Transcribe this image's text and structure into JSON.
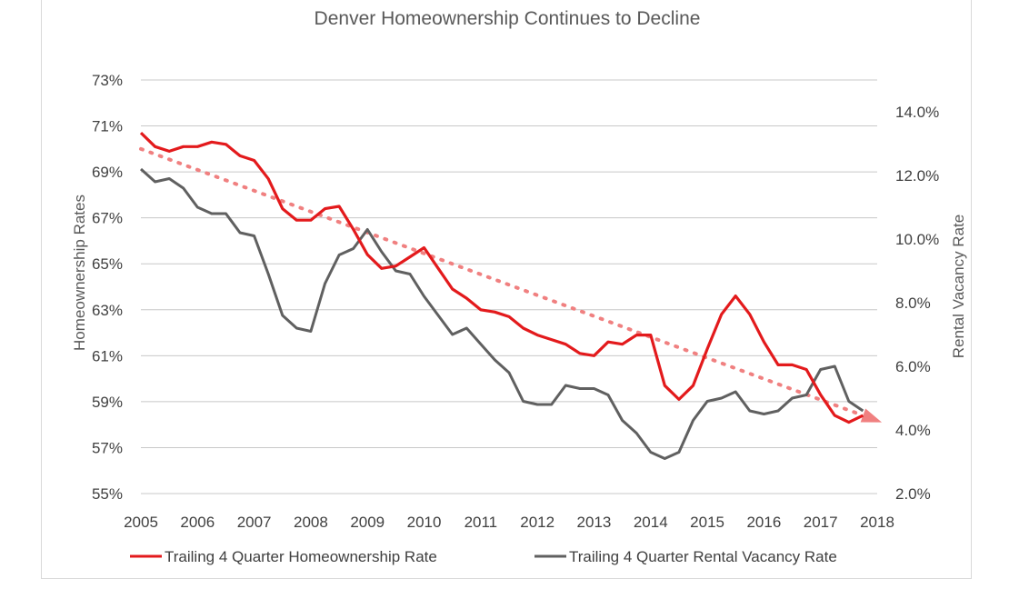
{
  "chart_data": {
    "type": "line",
    "title": "Denver Homeownership Continues to Decline",
    "ylabel": "Homeownership Rates",
    "y2label": "Rental Vacancy Rate",
    "x_tick_labels": [
      "2005",
      "2006",
      "2007",
      "2008",
      "2009",
      "2010",
      "2011",
      "2012",
      "2013",
      "2014",
      "2015",
      "2016",
      "2017",
      "2018"
    ],
    "y_tick_labels": [
      "55%",
      "57%",
      "59%",
      "61%",
      "63%",
      "65%",
      "67%",
      "69%",
      "71%",
      "73%"
    ],
    "y2_tick_labels": [
      "2.0%",
      "4.0%",
      "6.0%",
      "8.0%",
      "10.0%",
      "12.0%",
      "14.0%"
    ],
    "ylim": [
      55,
      73
    ],
    "y2lim": [
      2.0,
      15.0
    ],
    "xlim": [
      2005,
      2018
    ],
    "grid": true,
    "legend_position": "bottom",
    "x": [
      2005.0,
      2005.25,
      2005.5,
      2005.75,
      2006.0,
      2006.25,
      2006.5,
      2006.75,
      2007.0,
      2007.25,
      2007.5,
      2007.75,
      2008.0,
      2008.25,
      2008.5,
      2008.75,
      2009.0,
      2009.25,
      2009.5,
      2009.75,
      2010.0,
      2010.25,
      2010.5,
      2010.75,
      2011.0,
      2011.25,
      2011.5,
      2011.75,
      2012.0,
      2012.25,
      2012.5,
      2012.75,
      2013.0,
      2013.25,
      2013.5,
      2013.75,
      2014.0,
      2014.25,
      2014.5,
      2014.75,
      2015.0,
      2015.25,
      2015.5,
      2015.75,
      2016.0,
      2016.25,
      2016.5,
      2016.75,
      2017.0,
      2017.25,
      2017.5,
      2017.75
    ],
    "series": [
      {
        "name": "Trailing 4 Quarter Homeownership Rate",
        "axis": "left",
        "color": "#e31a1c",
        "values": [
          70.7,
          70.1,
          69.9,
          70.1,
          70.1,
          70.3,
          70.2,
          69.7,
          69.5,
          68.7,
          67.4,
          66.9,
          66.9,
          67.4,
          67.5,
          66.5,
          65.4,
          64.8,
          64.9,
          65.3,
          65.7,
          64.8,
          63.9,
          63.5,
          63.0,
          62.9,
          62.7,
          62.2,
          61.9,
          61.7,
          61.5,
          61.1,
          61.0,
          61.6,
          61.5,
          61.9,
          61.9,
          59.7,
          59.1,
          59.7,
          61.3,
          62.8,
          63.6,
          62.8,
          61.6,
          60.6,
          60.6,
          60.4,
          59.3,
          58.4,
          58.1,
          58.4
        ]
      },
      {
        "name": "Trailing 4 Quarter Rental Vacancy Rate",
        "axis": "right",
        "color": "#606060",
        "values": [
          12.2,
          11.8,
          11.9,
          11.6,
          11.0,
          10.8,
          10.8,
          10.2,
          10.1,
          8.9,
          7.6,
          7.2,
          7.1,
          8.6,
          9.5,
          9.7,
          10.3,
          9.6,
          9.0,
          8.9,
          8.2,
          7.6,
          7.0,
          7.2,
          6.7,
          6.2,
          5.8,
          4.9,
          4.8,
          4.8,
          5.4,
          5.3,
          5.3,
          5.1,
          4.3,
          3.9,
          3.3,
          3.1,
          3.3,
          4.3,
          4.9,
          5.0,
          5.2,
          4.6,
          4.5,
          4.6,
          5.0,
          5.1,
          5.9,
          6.0,
          4.9,
          4.6
        ]
      }
    ],
    "trendline": {
      "series": "Trailing 4 Quarter Homeownership Rate",
      "style": "dotted",
      "color": "#f08080",
      "start": [
        2005.0,
        70.0
      ],
      "end": [
        2017.75,
        58.4
      ]
    }
  }
}
